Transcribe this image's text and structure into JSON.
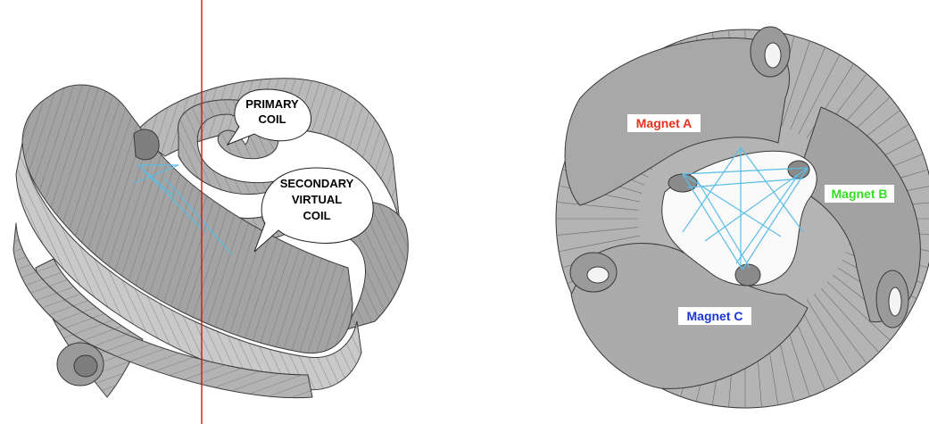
{
  "left_figure": {
    "callouts": [
      {
        "lines": [
          "PRIMARY",
          "COIL"
        ]
      },
      {
        "lines": [
          "SECONDARY",
          "VIRTUAL",
          "COIL"
        ]
      }
    ],
    "axis_color": "#e01010"
  },
  "right_figure": {
    "magnets": [
      {
        "label": "Magnet A",
        "color": "#e8301c"
      },
      {
        "label": "Magnet B",
        "color": "#33dd22"
      },
      {
        "label": "Magnet C",
        "color": "#1a36d6"
      }
    ]
  },
  "colors": {
    "coil_light": "#c8c8c8",
    "coil_mid": "#a9a9a9",
    "coil_dark": "#8a8a8a",
    "field_lines": "#5bbde6"
  }
}
